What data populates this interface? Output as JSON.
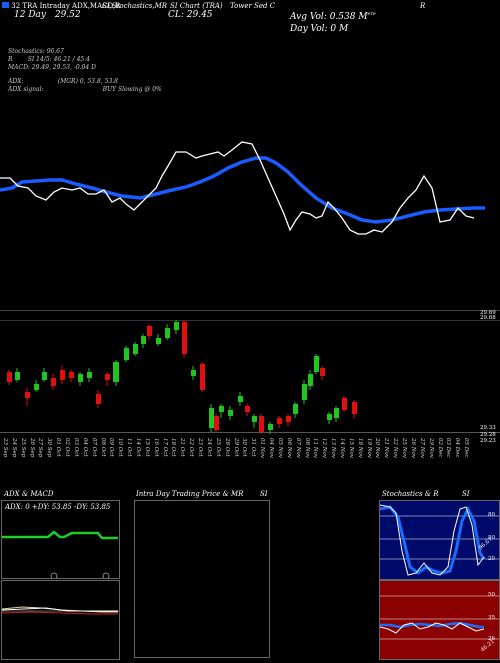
{
  "header": {
    "line1": "32 TRA Intraday ADX,MACD,R",
    "line1b": "SI,Stochastics,MR",
    "line1c": "SI Chart (TRA)",
    "line1d": "Tower Sed C",
    "line1e": "R",
    "line2_label": "12 Day",
    "line2_value": "29.52",
    "close_label": "CL: 29.45",
    "avg_vol": "Avg Vol: 0.538  M",
    "avg_vol_sup": "ere",
    "day_vol": "Day Vol: 0   M"
  },
  "indicators": {
    "stochastics": "Stochastics: 96.67",
    "rsi": "SI 14/5: 46.21 / 45.4",
    "rsi_prefix": "R",
    "macd": "MACD: 29.49, 29.53, -0.04  D",
    "adx": "ADX:",
    "adx_val": "(MGR) 0, 53.8,  53.8",
    "adx_signal": "ADX  signal:",
    "buy": "BUY Slowing @ 0%"
  },
  "candle_axis": {
    "top": "29.69",
    "top2": "29.68",
    "bottom": "29.33",
    "bottom2": "29.28",
    "bottom3": "29.23"
  },
  "dates": [
    "23 Sep",
    "24 Sep",
    "25 Sep",
    "26 Sep",
    "27 Sep",
    "30 Sep",
    "01 Oct",
    "02 Oct",
    "03 Oct",
    "04 Oct",
    "07 Oct",
    "08 Oct",
    "09 Oct",
    "10 Oct",
    "11 Oct",
    "14 Oct",
    "15 Oct",
    "16 Oct",
    "17 Oct",
    "18 Oct",
    "21 Oct",
    "22 Oct",
    "23 Oct",
    "24 Oct",
    "25 Oct",
    "28 Oct",
    "29 Oct",
    "30 Oct",
    "31 Oct",
    "01 Nov",
    "04 Nov",
    "05 Nov",
    "06 Nov",
    "07 Nov",
    "08 Nov",
    "11 Nov",
    "12 Nov",
    "13 Nov",
    "14 Nov",
    "15 Nov",
    "18 Nov",
    "19 Nov",
    "20 Nov",
    "21 Nov",
    "22 Nov",
    "25 Nov",
    "26 Nov",
    "27 Nov",
    "29 Nov",
    "02 Dec",
    "03 Dec",
    "04 Dec",
    "05 Dec"
  ],
  "panels": {
    "adx_title": "ADX  & MACD",
    "adx_box": "ADX: 0   +DY: 53.85  -DY: 53.85",
    "mr_title": "Intra  Day Trading Price  & MR",
    "mr_suffix": "SI",
    "stoch_title": "Stochastics & R",
    "stoch_suffix": "SI",
    "stoch_ticks": [
      "80",
      "50",
      "20"
    ],
    "rsi_ticks": [
      "50",
      "35",
      "26"
    ],
    "stoch_marker": "96.67",
    "rsi_marker": "46.21"
  },
  "colors": {
    "up": "#21c521",
    "down": "#e01010",
    "ma": "#1a5cff",
    "price": "#ffffff",
    "adx_green": "#22cc22",
    "stoch_bg": "#000a6a",
    "rsi_bg": "#8b0000"
  }
}
